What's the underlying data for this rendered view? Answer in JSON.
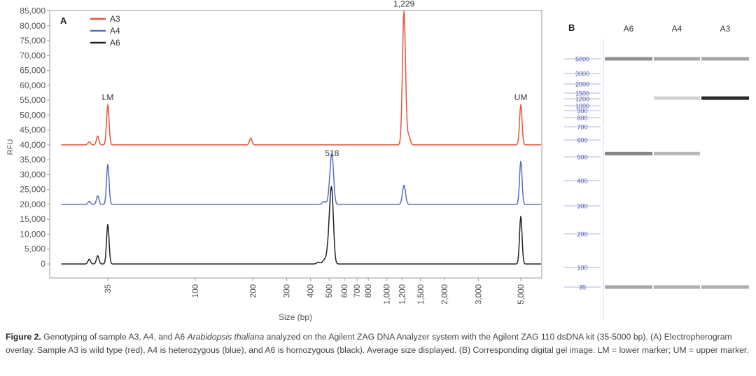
{
  "panel_a": {
    "label": "A",
    "ylabel": "RFU",
    "xlabel": "Size (bp)",
    "y_ticks": [
      "85,000",
      "80,000",
      "75,000",
      "70,000",
      "65,000",
      "60,000",
      "55,000",
      "50,000",
      "45,000",
      "40,000",
      "35,000",
      "30,000",
      "25,000",
      "20,000",
      "15,000",
      "10,000",
      "5,000",
      "0"
    ],
    "x_ticks": [
      "35",
      "100",
      "200",
      "300",
      "400",
      "500",
      "600",
      "700",
      "800",
      "1,000",
      "1,200",
      "1,500",
      "2,000",
      "3,000",
      "5,000"
    ],
    "annotations": [
      {
        "text": "LM",
        "x": 35,
        "y": 55000
      },
      {
        "text": "UM",
        "x": 5000,
        "y": 55000
      },
      {
        "text": "518",
        "x": 518,
        "y": 36200
      },
      {
        "text": "1,229",
        "x": 1229,
        "y": 86400
      }
    ]
  },
  "panel_b": {
    "label": "B",
    "lanes": [
      "A6",
      "A4",
      "A3"
    ],
    "ladder": [
      "5000",
      "3000",
      "2000",
      "1500",
      "1200",
      "1000",
      "900",
      "800",
      "700",
      "600",
      "500",
      "400",
      "300",
      "200",
      "100",
      "35"
    ]
  },
  "caption": {
    "figure_label": "Figure 2.",
    "text_before_italic": " Genotyping of sample A3, A4, and A6 ",
    "italic": "Arabidopsis thaliana",
    "text_after_italic": " analyzed on the Agilent ZAG DNA Analyzer system with the Agilent ZAG 110 dsDNA kit (35-5000 bp). (A) Electropherogram overlay. Sample A3 is wild type (red), A4 is heterozygous (blue), and A6 is homozygous (black). Average size displayed. (B) Corresponding digital gel image. LM = lower marker; UM = upper marker."
  },
  "chart_data": [
    {
      "type": "line",
      "title": "A",
      "xlabel": "Size (bp)",
      "ylabel": "RFU",
      "ylim": [
        0,
        85000
      ],
      "x_scale": "log",
      "xlim": [
        20,
        6500
      ],
      "grid": false,
      "legend_position": "top-left",
      "series": [
        {
          "name": "A3",
          "color": "#e8543a",
          "baseline": 40000,
          "peaks": [
            {
              "x": 28,
              "y": 41000
            },
            {
              "x": 31,
              "y": 43000
            },
            {
              "x": 35,
              "y": 53500
            },
            {
              "x": 195,
              "y": 42300
            },
            {
              "x": 1229,
              "y": 85000
            },
            {
              "x": 1300,
              "y": 43000
            },
            {
              "x": 5000,
              "y": 53500
            }
          ]
        },
        {
          "name": "A4",
          "color": "#5b6cc4",
          "baseline": 20000,
          "peaks": [
            {
              "x": 28,
              "y": 21000
            },
            {
              "x": 31,
              "y": 22900
            },
            {
              "x": 35,
              "y": 33500
            },
            {
              "x": 470,
              "y": 21000
            },
            {
              "x": 505,
              "y": 24500
            },
            {
              "x": 518,
              "y": 35000
            },
            {
              "x": 1229,
              "y": 26500
            },
            {
              "x": 5000,
              "y": 34500
            }
          ]
        },
        {
          "name": "A6",
          "color": "#222222",
          "baseline": 0,
          "peaks": [
            {
              "x": 28,
              "y": 1600
            },
            {
              "x": 31,
              "y": 2800
            },
            {
              "x": 35,
              "y": 13300
            },
            {
              "x": 440,
              "y": 600
            },
            {
              "x": 470,
              "y": 1200
            },
            {
              "x": 490,
              "y": 2500
            },
            {
              "x": 505,
              "y": 11800
            },
            {
              "x": 518,
              "y": 19500
            },
            {
              "x": 5000,
              "y": 16000
            }
          ]
        }
      ]
    },
    {
      "type": "heatmap",
      "title": "B",
      "lanes": [
        "A6",
        "A4",
        "A3"
      ],
      "ladder_bp": [
        5000,
        3000,
        2000,
        1500,
        1200,
        1000,
        900,
        800,
        700,
        600,
        500,
        400,
        300,
        200,
        100,
        35
      ],
      "bands": [
        {
          "lane": "A6",
          "bp": 5000,
          "intensity": 0.45
        },
        {
          "lane": "A6",
          "bp": 518,
          "intensity": 0.5
        },
        {
          "lane": "A6",
          "bp": 35,
          "intensity": 0.35
        },
        {
          "lane": "A4",
          "bp": 5000,
          "intensity": 0.35
        },
        {
          "lane": "A4",
          "bp": 1229,
          "intensity": 0.12
        },
        {
          "lane": "A4",
          "bp": 518,
          "intensity": 0.25
        },
        {
          "lane": "A4",
          "bp": 35,
          "intensity": 0.3
        },
        {
          "lane": "A3",
          "bp": 5000,
          "intensity": 0.35
        },
        {
          "lane": "A3",
          "bp": 1229,
          "intensity": 0.95
        },
        {
          "lane": "A3",
          "bp": 35,
          "intensity": 0.3
        }
      ]
    }
  ]
}
